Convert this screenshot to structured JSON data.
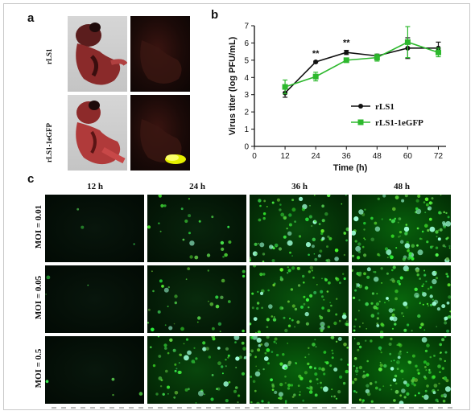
{
  "panels": {
    "a": {
      "letter": "a",
      "samples": [
        "rLS1",
        "rLS1-1eGFP"
      ]
    },
    "b": {
      "letter": "b"
    },
    "c": {
      "letter": "c",
      "columns": [
        "12 h",
        "24 h",
        "36 h",
        "48 h"
      ],
      "rows": [
        "MOI = 0.01",
        "MOI = 0.05",
        "MOI = 0.5"
      ],
      "fluorescence_intensity": [
        [
          0.02,
          0.18,
          0.6,
          0.85
        ],
        [
          0.02,
          0.25,
          0.7,
          0.9
        ],
        [
          0.03,
          0.55,
          0.85,
          0.95
        ]
      ]
    }
  },
  "chart_data": {
    "type": "line",
    "xlabel": "Time (h)",
    "ylabel": "Virus titer (log PFU/mL)",
    "x": [
      12,
      24,
      36,
      48,
      60,
      72
    ],
    "xticks": [
      0,
      12,
      24,
      36,
      48,
      60,
      72
    ],
    "xlim": [
      0,
      75
    ],
    "ylim": [
      0,
      7
    ],
    "yticks": [
      0,
      1,
      2,
      3,
      4,
      5,
      6,
      7
    ],
    "series": [
      {
        "name": "rLS1",
        "color": "#111111",
        "marker": "circle",
        "values": [
          3.1,
          4.9,
          5.45,
          5.25,
          5.7,
          5.7
        ],
        "errors": [
          0.25,
          0.05,
          0.12,
          0.1,
          0.6,
          0.35
        ]
      },
      {
        "name": "rLS1-1eGFP",
        "color": "#2db82d",
        "marker": "square",
        "values": [
          3.45,
          4.05,
          5.0,
          5.15,
          6.05,
          5.45
        ],
        "errors": [
          0.4,
          0.25,
          0.05,
          0.2,
          0.9,
          0.25
        ]
      }
    ],
    "annotations": [
      {
        "text": "**",
        "x": 24
      },
      {
        "text": "**",
        "x": 36
      }
    ],
    "legend": "right"
  }
}
